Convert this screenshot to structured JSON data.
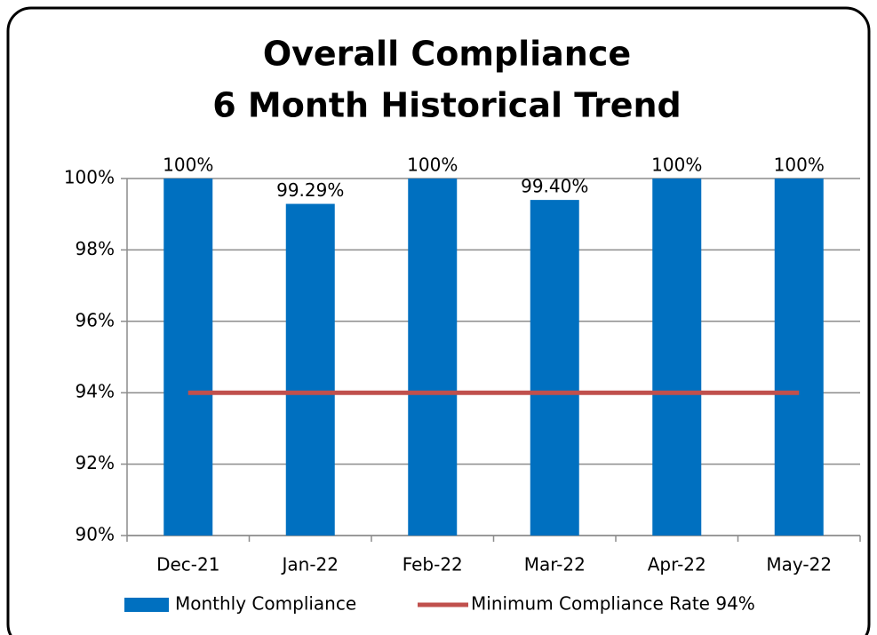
{
  "chart_data": {
    "type": "bar",
    "title": "Overall Compliance",
    "subtitle": "6 Month Historical Trend",
    "categories": [
      "Dec-21",
      "Jan-22",
      "Feb-22",
      "Mar-22",
      "Apr-22",
      "May-22"
    ],
    "series": [
      {
        "name": "Monthly Compliance",
        "type": "bar",
        "color": "#0070c0",
        "values": [
          100,
          99.29,
          100,
          99.4,
          100,
          100
        ],
        "value_labels": [
          "100%",
          "99.29%",
          "100%",
          "99.40%",
          "100%",
          "100%"
        ]
      },
      {
        "name": "Minimum Compliance Rate 94%",
        "type": "line",
        "color": "#c0504d",
        "values": [
          94,
          94,
          94,
          94,
          94,
          94
        ]
      }
    ],
    "ylim": [
      90,
      100
    ],
    "yticks": [
      {
        "value": 90,
        "label": "90%"
      },
      {
        "value": 92,
        "label": "92%"
      },
      {
        "value": 94,
        "label": "94%"
      },
      {
        "value": 96,
        "label": "96%"
      },
      {
        "value": 98,
        "label": "98%"
      },
      {
        "value": 100,
        "label": "100%"
      }
    ],
    "grid": true,
    "legend": "bottom"
  }
}
